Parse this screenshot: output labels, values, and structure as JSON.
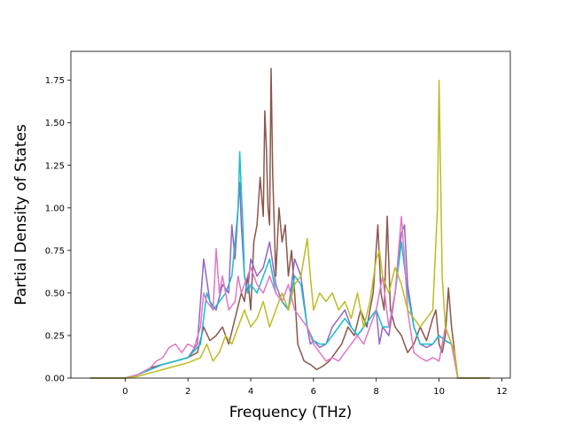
{
  "chart_data": {
    "type": "line",
    "title": "",
    "xlabel": "Frequency (THz)",
    "ylabel": "Partial Density of States",
    "xlim": [
      -1.73,
      12.27
    ],
    "ylim": [
      0,
      1.92
    ],
    "xticks": [
      0,
      2,
      4,
      6,
      8,
      10,
      12
    ],
    "yticks": [
      0.0,
      0.25,
      0.5,
      0.75,
      1.0,
      1.25,
      1.5,
      1.75
    ],
    "ytick_labels": [
      "0.00",
      "0.25",
      "0.50",
      "0.75",
      "1.00",
      "1.25",
      "1.50",
      "1.75"
    ],
    "grid": false,
    "legend": "none",
    "series": [
      {
        "color": "#8c564b",
        "x": [
          -1.1,
          0,
          0.4,
          0.8,
          1.2,
          1.6,
          2.0,
          2.3,
          2.5,
          2.7,
          2.9,
          3.1,
          3.3,
          3.5,
          3.7,
          3.8,
          3.9,
          4.0,
          4.1,
          4.2,
          4.3,
          4.4,
          4.45,
          4.5,
          4.55,
          4.6,
          4.65,
          4.7,
          4.8,
          4.9,
          5.0,
          5.1,
          5.2,
          5.3,
          5.4,
          5.5,
          5.7,
          5.9,
          6.1,
          6.3,
          6.5,
          6.7,
          6.9,
          7.1,
          7.3,
          7.5,
          7.7,
          7.9,
          8.05,
          8.15,
          8.25,
          8.35,
          8.45,
          8.6,
          8.8,
          8.9,
          9.0,
          9.2,
          9.4,
          9.6,
          9.8,
          9.9,
          9.95,
          10.0,
          10.1,
          10.2,
          10.3,
          10.4,
          10.5,
          10.6,
          11.6
        ],
        "y": [
          0,
          0,
          0.02,
          0.06,
          0.08,
          0.1,
          0.12,
          0.15,
          0.3,
          0.22,
          0.25,
          0.3,
          0.2,
          0.35,
          0.5,
          0.45,
          0.6,
          0.4,
          0.8,
          0.9,
          1.18,
          0.95,
          1.57,
          1.35,
          1.0,
          0.9,
          1.82,
          1.2,
          0.6,
          1.0,
          0.8,
          0.9,
          0.6,
          0.75,
          0.5,
          0.2,
          0.1,
          0.08,
          0.05,
          0.07,
          0.1,
          0.15,
          0.2,
          0.3,
          0.25,
          0.4,
          0.3,
          0.5,
          0.9,
          0.5,
          0.4,
          0.95,
          0.4,
          0.3,
          0.25,
          0.2,
          0.15,
          0.2,
          0.3,
          0.22,
          0.35,
          0.4,
          0.3,
          0.2,
          0.15,
          0.25,
          0.53,
          0.3,
          0.15,
          0,
          0
        ]
      },
      {
        "color": "#9467bd",
        "x": [
          -1.1,
          0,
          0.4,
          0.8,
          1.2,
          1.6,
          2.0,
          2.3,
          2.5,
          2.7,
          2.9,
          3.1,
          3.3,
          3.4,
          3.5,
          3.6,
          3.65,
          3.7,
          3.8,
          3.9,
          4.0,
          4.2,
          4.4,
          4.6,
          4.8,
          5.0,
          5.2,
          5.4,
          5.6,
          5.8,
          5.9,
          6.0,
          6.2,
          6.4,
          6.6,
          6.8,
          7.0,
          7.2,
          7.4,
          7.6,
          7.8,
          8.0,
          8.1,
          8.2,
          8.4,
          8.6,
          8.8,
          8.9,
          9.0,
          9.2,
          9.4,
          9.6,
          9.8,
          10.0,
          10.2,
          10.4,
          10.5,
          10.6,
          11.6
        ],
        "y": [
          0,
          0,
          0.02,
          0.05,
          0.08,
          0.1,
          0.12,
          0.2,
          0.7,
          0.45,
          0.4,
          0.55,
          0.5,
          0.9,
          0.7,
          1.0,
          1.15,
          0.9,
          0.6,
          0.5,
          0.7,
          0.6,
          0.65,
          0.8,
          0.55,
          0.45,
          0.4,
          0.7,
          0.6,
          0.3,
          0.2,
          0.22,
          0.18,
          0.2,
          0.3,
          0.35,
          0.4,
          0.3,
          0.25,
          0.3,
          0.35,
          0.4,
          0.2,
          0.3,
          0.25,
          0.5,
          0.85,
          0.9,
          0.55,
          0.3,
          0.2,
          0.18,
          0.2,
          0.25,
          0.22,
          0.2,
          0.1,
          0,
          0
        ]
      },
      {
        "color": "#17becf",
        "x": [
          -1.1,
          0,
          0.4,
          0.8,
          1.2,
          1.6,
          2.0,
          2.4,
          2.6,
          2.8,
          3.0,
          3.2,
          3.4,
          3.5,
          3.6,
          3.65,
          3.7,
          3.75,
          3.8,
          3.9,
          4.0,
          4.2,
          4.4,
          4.6,
          4.8,
          5.0,
          5.2,
          5.4,
          5.6,
          5.8,
          6.0,
          6.2,
          6.4,
          6.6,
          6.8,
          7.0,
          7.2,
          7.4,
          7.6,
          7.8,
          8.0,
          8.2,
          8.4,
          8.6,
          8.8,
          9.0,
          9.2,
          9.4,
          9.6,
          9.8,
          10.0,
          10.2,
          10.4,
          10.5,
          10.6,
          11.6
        ],
        "y": [
          0,
          0,
          0.02,
          0.05,
          0.08,
          0.1,
          0.12,
          0.2,
          0.5,
          0.4,
          0.45,
          0.5,
          0.6,
          0.8,
          1.0,
          1.33,
          1.1,
          0.9,
          0.6,
          0.5,
          0.55,
          0.5,
          0.6,
          0.7,
          0.5,
          0.45,
          0.4,
          0.6,
          0.55,
          0.3,
          0.22,
          0.2,
          0.2,
          0.25,
          0.3,
          0.35,
          0.3,
          0.25,
          0.3,
          0.35,
          0.4,
          0.3,
          0.3,
          0.5,
          0.8,
          0.5,
          0.3,
          0.2,
          0.2,
          0.2,
          0.25,
          0.22,
          0.2,
          0.1,
          0,
          0
        ]
      },
      {
        "color": "#e377c2",
        "x": [
          -1.1,
          0,
          0.4,
          0.8,
          1.0,
          1.2,
          1.4,
          1.6,
          1.8,
          2.0,
          2.2,
          2.4,
          2.5,
          2.6,
          2.8,
          2.9,
          3.0,
          3.1,
          3.3,
          3.5,
          3.6,
          3.7,
          3.8,
          4.0,
          4.2,
          4.4,
          4.6,
          4.8,
          5.0,
          5.2,
          5.4,
          5.6,
          5.8,
          6.0,
          6.2,
          6.4,
          6.6,
          6.8,
          7.0,
          7.2,
          7.4,
          7.6,
          7.8,
          8.0,
          8.2,
          8.4,
          8.6,
          8.8,
          8.9,
          9.0,
          9.2,
          9.4,
          9.6,
          9.8,
          10.0,
          10.2,
          10.4,
          10.5,
          10.6,
          11.6
        ],
        "y": [
          0,
          0,
          0.02,
          0.06,
          0.1,
          0.12,
          0.18,
          0.2,
          0.15,
          0.2,
          0.18,
          0.3,
          0.5,
          0.45,
          0.4,
          0.76,
          0.5,
          0.6,
          0.4,
          0.45,
          0.6,
          0.5,
          0.55,
          0.65,
          0.55,
          0.5,
          0.6,
          0.5,
          0.45,
          0.55,
          0.4,
          0.35,
          0.3,
          0.2,
          0.15,
          0.1,
          0.12,
          0.1,
          0.15,
          0.2,
          0.25,
          0.2,
          0.3,
          0.4,
          0.6,
          0.3,
          0.5,
          0.95,
          0.7,
          0.4,
          0.15,
          0.12,
          0.1,
          0.12,
          0.1,
          0.3,
          0.2,
          0.1,
          0,
          0
        ]
      },
      {
        "color": "#bcbd22",
        "x": [
          -1.1,
          0,
          0.4,
          0.8,
          1.2,
          1.6,
          2.0,
          2.4,
          2.6,
          2.8,
          3.0,
          3.2,
          3.4,
          3.6,
          3.8,
          4.0,
          4.2,
          4.4,
          4.6,
          4.8,
          5.0,
          5.2,
          5.4,
          5.6,
          5.8,
          5.9,
          6.0,
          6.2,
          6.4,
          6.6,
          6.8,
          7.0,
          7.2,
          7.4,
          7.6,
          7.8,
          8.0,
          8.1,
          8.2,
          8.4,
          8.6,
          8.8,
          9.0,
          9.2,
          9.4,
          9.6,
          9.8,
          9.9,
          9.95,
          10.0,
          10.05,
          10.1,
          10.2,
          10.3,
          10.4,
          10.5,
          10.6,
          11.6
        ],
        "y": [
          0,
          0,
          0.01,
          0.03,
          0.05,
          0.07,
          0.09,
          0.12,
          0.2,
          0.1,
          0.15,
          0.25,
          0.2,
          0.3,
          0.4,
          0.3,
          0.35,
          0.45,
          0.3,
          0.4,
          0.5,
          0.4,
          0.55,
          0.6,
          0.82,
          0.6,
          0.4,
          0.5,
          0.45,
          0.5,
          0.4,
          0.45,
          0.35,
          0.5,
          0.3,
          0.45,
          0.7,
          0.75,
          0.6,
          0.5,
          0.65,
          0.55,
          0.4,
          0.35,
          0.3,
          0.35,
          0.4,
          0.8,
          1.0,
          1.75,
          1.2,
          0.6,
          0.3,
          0.25,
          0.2,
          0.15,
          0,
          0
        ]
      }
    ]
  }
}
